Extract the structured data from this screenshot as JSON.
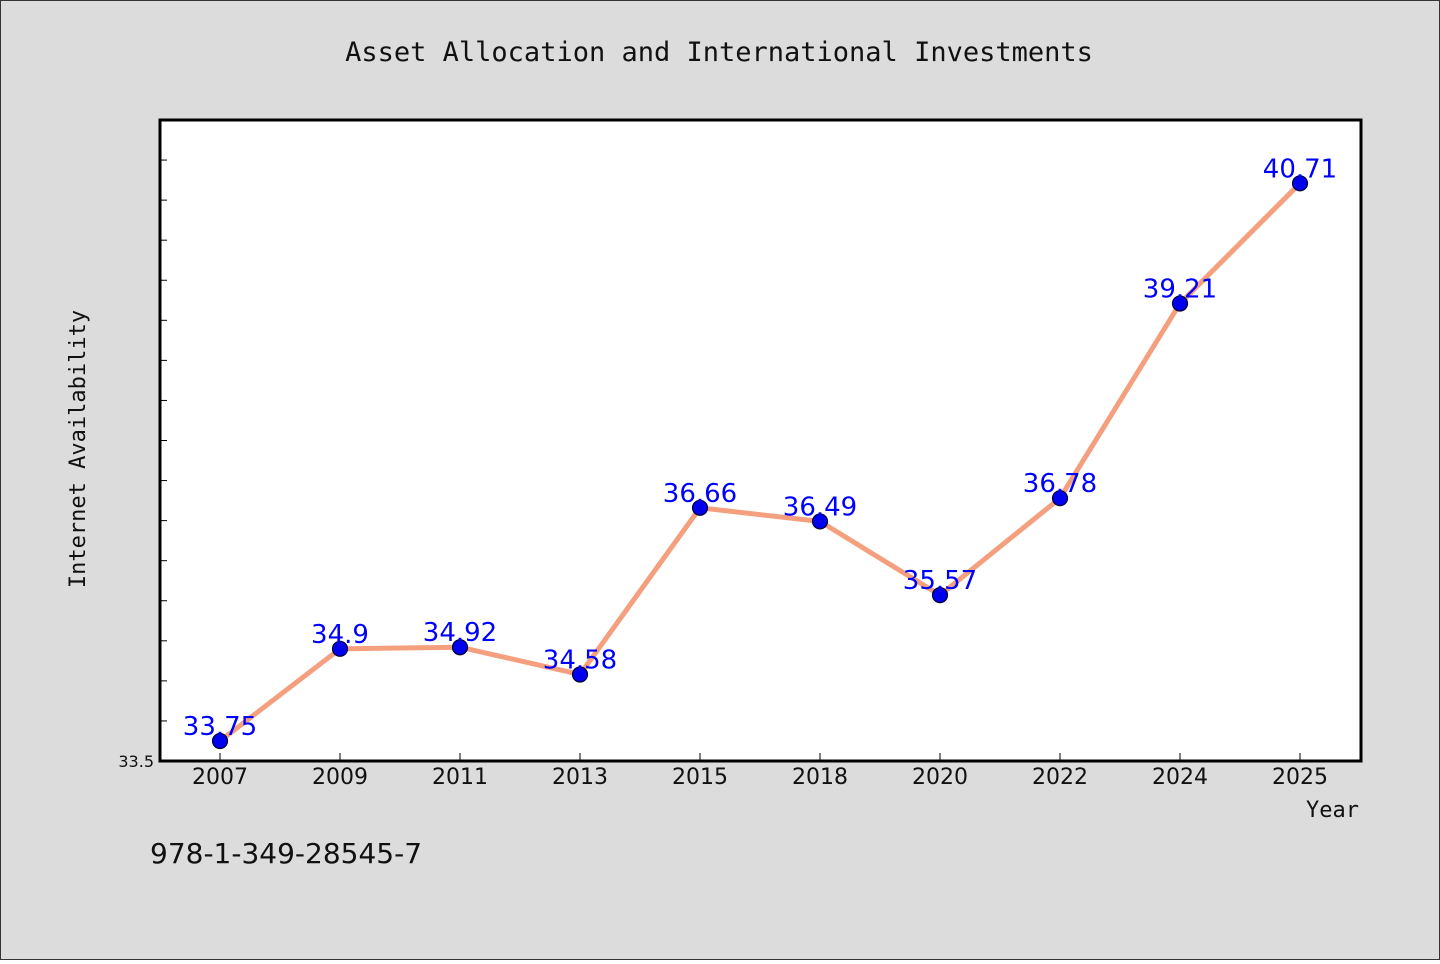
{
  "chart_data": {
    "type": "line",
    "title": "Asset Allocation and International Investments",
    "xlabel": "Year",
    "ylabel": "Internet Availability",
    "categories": [
      "2007",
      "2009",
      "2011",
      "2013",
      "2015",
      "2018",
      "2020",
      "2022",
      "2024",
      "2025"
    ],
    "series": [
      {
        "values": [
          33.75,
          34.9,
          34.92,
          34.58,
          36.66,
          36.49,
          35.57,
          36.78,
          39.21,
          40.71
        ],
        "labels": [
          "33.75",
          "34.9",
          "34.92",
          "34.58",
          "36.66",
          "36.49",
          "35.57",
          "36.78",
          "39.21",
          "40.71"
        ],
        "line_color": "#f4a07e",
        "marker_color": "#0000ee"
      }
    ],
    "ylim": [
      33.5,
      41.5
    ],
    "yticks_labeled": [
      "33.5"
    ],
    "grid": false,
    "legend": "none"
  },
  "footer_code": "978-1-349-28545-7",
  "colors": {
    "background": "#dcdcdc",
    "plot_background": "#ffffff",
    "label_color": "#0000ff"
  }
}
